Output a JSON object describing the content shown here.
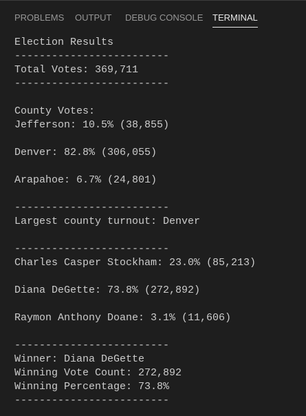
{
  "tabs": [
    "PROBLEMS",
    "OUTPUT",
    "DEBUG CONSOLE",
    "TERMINAL"
  ],
  "active_tab": "TERMINAL",
  "terminal": {
    "lines": [
      "Election Results",
      "-------------------------",
      "Total Votes: 369,711",
      "-------------------------",
      "County Votes:",
      "Jefferson: 10.5% (38,855)",
      "Denver: 82.8% (306,055)",
      "Arapahoe: 6.7% (24,801)",
      "-------------------------",
      "Largest county turnout: Denver",
      "-------------------------",
      "Charles Casper Stockham: 23.0% (85,213)",
      "Diana DeGette: 73.8% (272,892)",
      "Raymon Anthony Doane: 3.1% (11,606)",
      "-------------------------",
      "Winner: Diana DeGette",
      "Winning Vote Count: 272,892",
      "Winning Percentage: 73.8%",
      "-------------------------"
    ]
  }
}
